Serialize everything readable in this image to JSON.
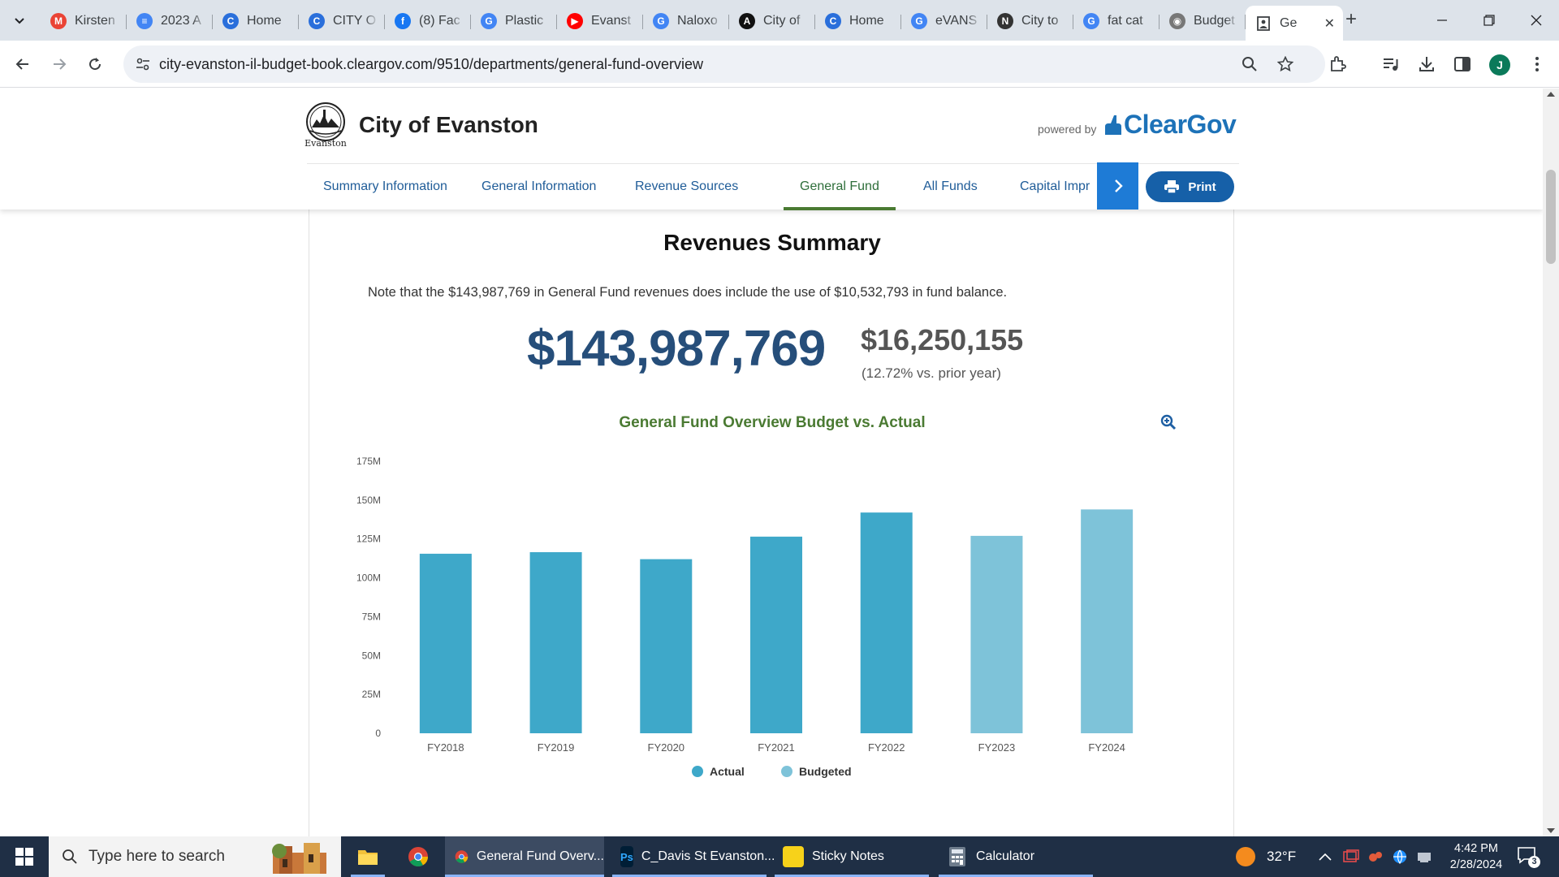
{
  "browser": {
    "tabs": [
      {
        "title": "Kirsten",
        "icon": "gmail-icon",
        "color": "#ea4335",
        "glyph": "M"
      },
      {
        "title": "2023 A",
        "icon": "docs-icon",
        "color": "#4285f4",
        "glyph": "≡"
      },
      {
        "title": "Home",
        "icon": "cleargov-icon",
        "color": "#2a6fdb",
        "glyph": "C"
      },
      {
        "title": "CITY O",
        "icon": "cleargov-icon",
        "color": "#2a6fdb",
        "glyph": "C"
      },
      {
        "title": "(8) Fac",
        "icon": "facebook-icon",
        "color": "#1877f2",
        "glyph": "f"
      },
      {
        "title": "Plastic",
        "icon": "google-icon",
        "color": "#4285f4",
        "glyph": "G"
      },
      {
        "title": "Evanst",
        "icon": "youtube-icon",
        "color": "#ff0000",
        "glyph": "▶"
      },
      {
        "title": "Naloxo",
        "icon": "google-icon",
        "color": "#4285f4",
        "glyph": "G"
      },
      {
        "title": "City of",
        "icon": "app-icon",
        "color": "#111111",
        "glyph": "A"
      },
      {
        "title": "Home",
        "icon": "cleargov-icon",
        "color": "#2a6fdb",
        "glyph": "C"
      },
      {
        "title": "eVANS",
        "icon": "google-icon",
        "color": "#4285f4",
        "glyph": "G"
      },
      {
        "title": "City to",
        "icon": "news-icon",
        "color": "#333333",
        "glyph": "N"
      },
      {
        "title": "fat cat",
        "icon": "google-icon",
        "color": "#4285f4",
        "glyph": "G"
      },
      {
        "title": "Budget",
        "icon": "globe-icon",
        "color": "#777777",
        "glyph": "◉"
      }
    ],
    "active_tab": {
      "title": "Ge",
      "icon": "document-icon"
    },
    "url": "city-evanston-il-budget-book.cleargov.com/9510/departments/general-fund-overview",
    "profile_initial": "J"
  },
  "site": {
    "org_name": "City of Evanston",
    "seal_caption": "Evanston",
    "powered_by": "powered by",
    "vendor": "ClearGov",
    "nav": [
      "Summary Information",
      "General Information",
      "Revenue Sources",
      "General Fund",
      "All Funds",
      "Capital Impr"
    ],
    "active_nav": "General Fund",
    "print_label": "Print"
  },
  "summary": {
    "title": "Revenues Summary",
    "note": "Note that the $143,987,769 in General Fund revenues does include the use of $10,532,793 in fund balance.",
    "total": "$143,987,769",
    "change": "$16,250,155",
    "change_note": "(12.72% vs. prior year)"
  },
  "chart_data": {
    "type": "bar",
    "title": "General Fund Overview Budget vs. Actual",
    "categories": [
      "FY2018",
      "FY2019",
      "FY2020",
      "FY2021",
      "FY2022",
      "FY2023",
      "FY2024"
    ],
    "values": [
      115.5,
      116.5,
      112,
      126.5,
      142,
      127,
      143.99
    ],
    "value_type": [
      "Actual",
      "Actual",
      "Actual",
      "Actual",
      "Actual",
      "Budgeted",
      "Budgeted"
    ],
    "series": [
      {
        "name": "Actual",
        "color": "#3ea8c9"
      },
      {
        "name": "Budgeted",
        "color": "#7ec3d9"
      }
    ],
    "ylim": [
      0,
      175
    ],
    "yticks": [
      0,
      25,
      50,
      75,
      100,
      125,
      150,
      175
    ],
    "ytick_labels": [
      "0",
      "25M",
      "50M",
      "75M",
      "100M",
      "125M",
      "150M",
      "175M"
    ],
    "unit": "M",
    "legend_position": "bottom-center",
    "grid": false,
    "xlabel": "",
    "ylabel": ""
  },
  "taskbar": {
    "search_placeholder": "Type here to search",
    "apps": [
      {
        "label": "",
        "icon": "file-explorer-icon"
      },
      {
        "label": "",
        "icon": "chrome-icon"
      },
      {
        "label": "General Fund Overv...",
        "icon": "chrome-icon"
      },
      {
        "label": "C_Davis St Evanston...",
        "icon": "photoshop-icon"
      },
      {
        "label": "Sticky Notes",
        "icon": "sticky-notes-icon"
      },
      {
        "label": "Calculator",
        "icon": "calculator-icon"
      }
    ],
    "weather": "32°F",
    "time": "4:42 PM",
    "date": "2/28/2024",
    "notification_count": "3"
  }
}
